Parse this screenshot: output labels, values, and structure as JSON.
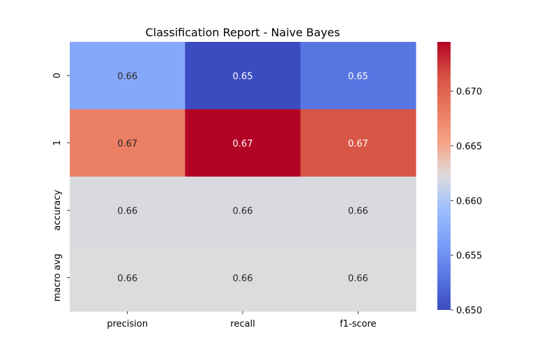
{
  "chart_data": {
    "type": "heatmap",
    "title": "Classification Report - Naive Bayes",
    "xlabel": "",
    "ylabel": "",
    "x_categories": [
      "precision",
      "recall",
      "f1-score"
    ],
    "y_categories": [
      "0",
      "1",
      "accuracy",
      "macro avg"
    ],
    "cells": [
      {
        "row": "0",
        "col": "precision",
        "value": 0.657,
        "label": "0.66"
      },
      {
        "row": "0",
        "col": "recall",
        "value": 0.65,
        "label": "0.65"
      },
      {
        "row": "0",
        "col": "f1-score",
        "value": 0.653,
        "label": "0.65"
      },
      {
        "row": "1",
        "col": "precision",
        "value": 0.668,
        "label": "0.67"
      },
      {
        "row": "1",
        "col": "recall",
        "value": 0.6745,
        "label": "0.67"
      },
      {
        "row": "1",
        "col": "f1-score",
        "value": 0.671,
        "label": "0.67"
      },
      {
        "row": "accuracy",
        "col": "precision",
        "value": 0.662,
        "label": "0.66"
      },
      {
        "row": "accuracy",
        "col": "recall",
        "value": 0.662,
        "label": "0.66"
      },
      {
        "row": "accuracy",
        "col": "f1-score",
        "value": 0.662,
        "label": "0.66"
      },
      {
        "row": "macro avg",
        "col": "precision",
        "value": 0.6623,
        "label": "0.66"
      },
      {
        "row": "macro avg",
        "col": "recall",
        "value": 0.6623,
        "label": "0.66"
      },
      {
        "row": "macro avg",
        "col": "f1-score",
        "value": 0.6623,
        "label": "0.66"
      }
    ],
    "colormap": "coolwarm",
    "colorbar": {
      "range": [
        0.65,
        0.6745
      ],
      "ticks": [
        "0.650",
        "0.655",
        "0.660",
        "0.665",
        "0.670"
      ],
      "placement": "right"
    },
    "grid": false
  }
}
